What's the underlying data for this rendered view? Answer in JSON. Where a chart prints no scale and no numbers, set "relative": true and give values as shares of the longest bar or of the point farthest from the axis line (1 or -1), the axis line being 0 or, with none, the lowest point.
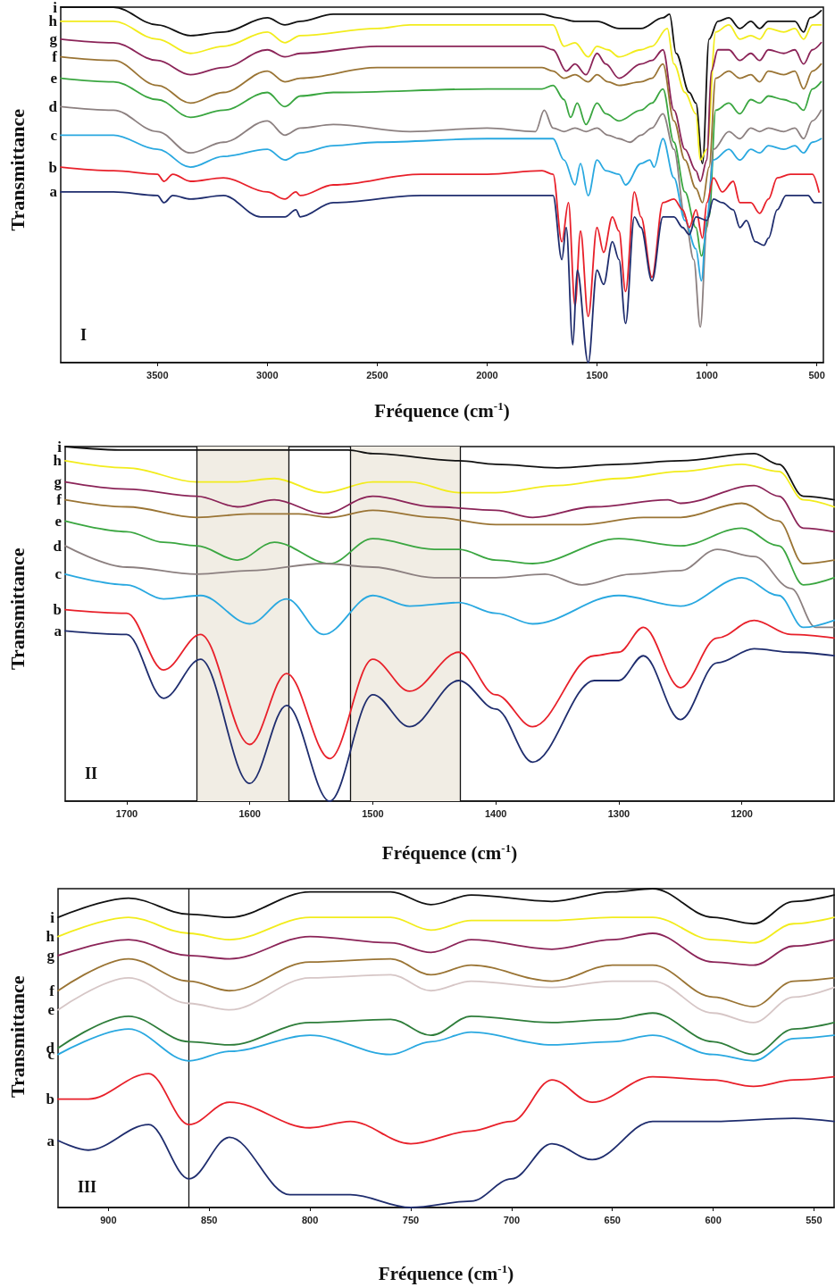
{
  "chart_data": [
    {
      "type": "line",
      "relative": true,
      "xlabel": "Fréquence (cm$^{-1}$)",
      "ylabel": "Transmittance",
      "annotations": [
        "I"
      ],
      "xlim": [
        3940,
        470
      ],
      "xticks": [
        3500,
        3000,
        2500,
        2000,
        1500,
        1000,
        500
      ],
      "grid": false,
      "legend": false,
      "marker": "none",
      "series": [
        {
          "name": "i",
          "color": "#111111",
          "x": [
            3940,
            3700,
            3500,
            3350,
            3200,
            3000,
            2920,
            2850,
            2700,
            2000,
            1750,
            1680,
            1600,
            1500,
            1400,
            1300,
            1200,
            1170,
            1140,
            1080,
            1050,
            1020,
            990,
            950,
            900,
            850,
            800,
            760,
            720,
            650,
            600,
            560,
            530,
            480
          ],
          "values": [
            1.0,
            1.0,
            0.95,
            0.92,
            0.93,
            0.97,
            0.95,
            0.96,
            0.98,
            0.98,
            0.98,
            0.97,
            0.96,
            0.96,
            0.94,
            0.94,
            0.97,
            0.98,
            0.87,
            0.76,
            0.73,
            0.56,
            0.91,
            0.96,
            0.97,
            0.94,
            0.96,
            0.94,
            0.96,
            0.96,
            0.96,
            0.93,
            0.97,
            0.99
          ]
        },
        {
          "name": "h",
          "color": "#f2ec1c",
          "x": [
            3940,
            3700,
            3500,
            3350,
            3200,
            3000,
            2920,
            2850,
            2500,
            2350,
            2000,
            1750,
            1700,
            1650,
            1600,
            1540,
            1500,
            1450,
            1400,
            1300,
            1250,
            1180,
            1150,
            1100,
            1050,
            1030,
            1000,
            960,
            900,
            850,
            800,
            760,
            720,
            650,
            600,
            560,
            520,
            480
          ],
          "values": [
            0.96,
            0.96,
            0.91,
            0.87,
            0.89,
            0.93,
            0.9,
            0.92,
            0.94,
            0.95,
            0.95,
            0.95,
            0.95,
            0.89,
            0.9,
            0.86,
            0.89,
            0.88,
            0.86,
            0.88,
            0.89,
            0.94,
            0.84,
            0.76,
            0.7,
            0.57,
            0.6,
            0.93,
            0.95,
            0.91,
            0.92,
            0.91,
            0.94,
            0.93,
            0.94,
            0.91,
            0.95,
            0.95
          ]
        },
        {
          "name": "g",
          "color": "#8b2458",
          "x": [
            3940,
            3700,
            3500,
            3350,
            3200,
            3000,
            2920,
            2850,
            2500,
            2000,
            1750,
            1700,
            1640,
            1600,
            1550,
            1500,
            1460,
            1400,
            1300,
            1250,
            1200,
            1150,
            1100,
            1050,
            1030,
            1000,
            980,
            950,
            900,
            850,
            800,
            760,
            720,
            650,
            600,
            560,
            520,
            480
          ],
          "values": [
            0.91,
            0.9,
            0.85,
            0.81,
            0.83,
            0.88,
            0.86,
            0.87,
            0.89,
            0.89,
            0.89,
            0.88,
            0.82,
            0.84,
            0.81,
            0.87,
            0.84,
            0.8,
            0.84,
            0.85,
            0.88,
            0.71,
            0.6,
            0.54,
            0.51,
            0.57,
            0.82,
            0.88,
            0.88,
            0.85,
            0.87,
            0.85,
            0.88,
            0.87,
            0.88,
            0.84,
            0.88,
            0.9
          ]
        },
        {
          "name": "f",
          "color": "#9a7434",
          "x": [
            3940,
            3700,
            3500,
            3350,
            3200,
            3000,
            2920,
            2850,
            2500,
            2000,
            1750,
            1700,
            1650,
            1600,
            1540,
            1500,
            1450,
            1400,
            1300,
            1250,
            1200,
            1150,
            1100,
            1050,
            1020,
            990,
            960,
            900,
            850,
            800,
            760,
            720,
            650,
            600,
            560,
            520,
            480
          ],
          "values": [
            0.86,
            0.85,
            0.78,
            0.73,
            0.76,
            0.82,
            0.79,
            0.8,
            0.83,
            0.83,
            0.83,
            0.82,
            0.8,
            0.81,
            0.79,
            0.81,
            0.79,
            0.78,
            0.79,
            0.8,
            0.84,
            0.68,
            0.57,
            0.49,
            0.45,
            0.55,
            0.8,
            0.82,
            0.8,
            0.81,
            0.79,
            0.82,
            0.81,
            0.82,
            0.77,
            0.82,
            0.84
          ]
        },
        {
          "name": "e",
          "color": "#3aa640",
          "x": [
            3940,
            3700,
            3500,
            3350,
            3200,
            3000,
            2920,
            2850,
            2700,
            2000,
            1750,
            1700,
            1650,
            1620,
            1590,
            1550,
            1500,
            1460,
            1400,
            1300,
            1250,
            1200,
            1150,
            1100,
            1050,
            1025,
            990,
            960,
            900,
            850,
            800,
            760,
            720,
            650,
            600,
            560,
            520,
            480
          ],
          "values": [
            0.8,
            0.79,
            0.74,
            0.69,
            0.71,
            0.76,
            0.72,
            0.75,
            0.76,
            0.77,
            0.77,
            0.78,
            0.74,
            0.69,
            0.73,
            0.67,
            0.73,
            0.7,
            0.68,
            0.71,
            0.73,
            0.77,
            0.62,
            0.48,
            0.38,
            0.3,
            0.41,
            0.71,
            0.73,
            0.7,
            0.74,
            0.73,
            0.75,
            0.74,
            0.73,
            0.71,
            0.77,
            0.79
          ]
        },
        {
          "name": "d",
          "color": "#8c8080",
          "x": [
            3940,
            3700,
            3500,
            3350,
            3200,
            3000,
            2920,
            2850,
            2700,
            2350,
            2000,
            1780,
            1740,
            1700,
            1650,
            1600,
            1550,
            1500,
            1450,
            1400,
            1350,
            1300,
            1250,
            1200,
            1150,
            1100,
            1060,
            1030,
            1000,
            970,
            900,
            850,
            800,
            760,
            720,
            650,
            600,
            560,
            520,
            480
          ],
          "values": [
            0.72,
            0.71,
            0.65,
            0.59,
            0.62,
            0.68,
            0.64,
            0.66,
            0.67,
            0.65,
            0.66,
            0.65,
            0.71,
            0.66,
            0.65,
            0.66,
            0.65,
            0.66,
            0.64,
            0.63,
            0.62,
            0.64,
            0.66,
            0.7,
            0.6,
            0.41,
            0.29,
            0.1,
            0.38,
            0.6,
            0.65,
            0.63,
            0.66,
            0.65,
            0.66,
            0.65,
            0.66,
            0.63,
            0.68,
            0.71
          ]
        },
        {
          "name": "c",
          "color": "#29a8e0",
          "x": [
            3940,
            3700,
            3500,
            3350,
            3200,
            3000,
            2920,
            2850,
            2700,
            2500,
            2000,
            1750,
            1700,
            1650,
            1600,
            1575,
            1540,
            1500,
            1460,
            1400,
            1370,
            1300,
            1260,
            1240,
            1200,
            1150,
            1100,
            1050,
            1025,
            1000,
            970,
            900,
            850,
            800,
            760,
            720,
            650,
            600,
            560,
            520,
            480
          ],
          "values": [
            0.64,
            0.64,
            0.6,
            0.55,
            0.58,
            0.6,
            0.57,
            0.59,
            0.61,
            0.62,
            0.63,
            0.63,
            0.63,
            0.57,
            0.5,
            0.56,
            0.47,
            0.57,
            0.54,
            0.53,
            0.5,
            0.56,
            0.57,
            0.55,
            0.63,
            0.52,
            0.4,
            0.32,
            0.23,
            0.41,
            0.57,
            0.6,
            0.57,
            0.6,
            0.59,
            0.61,
            0.6,
            0.61,
            0.59,
            0.62,
            0.63
          ]
        },
        {
          "name": "b",
          "color": "#e8202a",
          "x": [
            3940,
            3700,
            3500,
            3470,
            3430,
            3350,
            3200,
            3000,
            2920,
            2870,
            2850,
            2700,
            2300,
            2000,
            1750,
            1700,
            1660,
            1630,
            1600,
            1575,
            1540,
            1500,
            1470,
            1430,
            1400,
            1370,
            1330,
            1300,
            1250,
            1200,
            1150,
            1110,
            1080,
            1050,
            1020,
            1000,
            970,
            930,
            880,
            850,
            800,
            760,
            720,
            680,
            620,
            560,
            520,
            490
          ],
          "values": [
            0.55,
            0.54,
            0.53,
            0.51,
            0.53,
            0.51,
            0.52,
            0.48,
            0.46,
            0.48,
            0.47,
            0.5,
            0.53,
            0.53,
            0.54,
            0.53,
            0.34,
            0.45,
            0.16,
            0.37,
            0.13,
            0.38,
            0.31,
            0.41,
            0.37,
            0.2,
            0.48,
            0.41,
            0.24,
            0.45,
            0.46,
            0.43,
            0.38,
            0.43,
            0.35,
            0.45,
            0.52,
            0.48,
            0.51,
            0.45,
            0.45,
            0.42,
            0.46,
            0.52,
            0.53,
            0.53,
            0.53,
            0.48
          ]
        },
        {
          "name": "a",
          "color": "#1f2d6e",
          "x": [
            3940,
            3700,
            3500,
            3470,
            3430,
            3350,
            3200,
            3030,
            2920,
            2870,
            2850,
            2700,
            2300,
            2000,
            1750,
            1700,
            1660,
            1640,
            1610,
            1590,
            1540,
            1500,
            1470,
            1430,
            1400,
            1370,
            1330,
            1300,
            1250,
            1200,
            1150,
            1110,
            1080,
            1050,
            1000,
            970,
            930,
            880,
            850,
            820,
            780,
            740,
            720,
            680,
            640,
            600,
            540,
            510,
            480
          ],
          "values": [
            0.48,
            0.48,
            0.47,
            0.45,
            0.47,
            0.46,
            0.47,
            0.41,
            0.41,
            0.43,
            0.41,
            0.45,
            0.47,
            0.47,
            0.47,
            0.47,
            0.29,
            0.38,
            0.05,
            0.26,
            0,
            0.26,
            0.22,
            0.34,
            0.29,
            0.11,
            0.41,
            0.38,
            0.23,
            0.41,
            0.41,
            0.38,
            0.36,
            0.41,
            0.4,
            0.46,
            0.45,
            0.43,
            0.38,
            0.4,
            0.34,
            0.33,
            0.35,
            0.43,
            0.47,
            0.47,
            0.47,
            0.45,
            0.45
          ]
        }
      ]
    },
    {
      "type": "line",
      "relative": true,
      "xlabel": "Fréquence (cm$^{-1}$)",
      "ylabel": "Transmittance",
      "annotations": [
        "II"
      ],
      "xlim": [
        1750,
        1125
      ],
      "xticks": [
        1700,
        1600,
        1500,
        1400,
        1300,
        1200
      ],
      "grid": false,
      "legend": false,
      "marker": "none",
      "ref_lines": [
        {
          "axis": "x",
          "value": 1643,
          "label": null
        },
        {
          "axis": "x",
          "value": 1568,
          "label": null
        },
        {
          "axis": "x",
          "value": 1518,
          "label": null
        },
        {
          "axis": "x",
          "value": 1429,
          "label": null
        }
      ],
      "bands": [
        {
          "axis": "x",
          "from": 1643,
          "to": 1568,
          "label": null,
          "color": "#f1ede4"
        },
        {
          "axis": "x",
          "from": 1518,
          "to": 1429,
          "label": null,
          "color": "#f1ede4"
        }
      ],
      "series": [
        {
          "name": "i",
          "color": "#111111",
          "x": [
            1750,
            1700,
            1643,
            1568,
            1520,
            1500,
            1430,
            1400,
            1350,
            1300,
            1250,
            1190,
            1170,
            1150,
            1125
          ],
          "values": [
            1.0,
            0.99,
            0.99,
            0.99,
            0.99,
            0.98,
            0.96,
            0.95,
            0.94,
            0.95,
            0.96,
            0.98,
            0.95,
            0.86,
            0.85
          ]
        },
        {
          "name": "h",
          "color": "#f2ec1c",
          "x": [
            1750,
            1700,
            1643,
            1610,
            1580,
            1540,
            1500,
            1470,
            1430,
            1400,
            1350,
            1300,
            1250,
            1200,
            1170,
            1150,
            1125
          ],
          "values": [
            0.96,
            0.94,
            0.9,
            0.9,
            0.91,
            0.87,
            0.9,
            0.9,
            0.87,
            0.87,
            0.89,
            0.91,
            0.93,
            0.95,
            0.93,
            0.85,
            0.83
          ]
        },
        {
          "name": "g",
          "color": "#8b2458",
          "x": [
            1750,
            1700,
            1643,
            1610,
            1580,
            1540,
            1500,
            1450,
            1400,
            1370,
            1320,
            1260,
            1250,
            1190,
            1170,
            1150,
            1125
          ],
          "values": [
            0.9,
            0.88,
            0.86,
            0.83,
            0.85,
            0.81,
            0.86,
            0.83,
            0.82,
            0.8,
            0.83,
            0.85,
            0.84,
            0.89,
            0.86,
            0.77,
            0.76
          ]
        },
        {
          "name": "f",
          "color": "#9a7434",
          "x": [
            1750,
            1700,
            1643,
            1600,
            1560,
            1535,
            1500,
            1450,
            1400,
            1330,
            1280,
            1250,
            1200,
            1170,
            1150,
            1125
          ],
          "values": [
            0.85,
            0.83,
            0.8,
            0.81,
            0.81,
            0.8,
            0.82,
            0.8,
            0.78,
            0.78,
            0.8,
            0.8,
            0.84,
            0.79,
            0.67,
            0.68
          ]
        },
        {
          "name": "e",
          "color": "#3aa640",
          "x": [
            1750,
            1700,
            1670,
            1643,
            1610,
            1580,
            1535,
            1500,
            1450,
            1430,
            1400,
            1370,
            1300,
            1250,
            1200,
            1170,
            1150,
            1125
          ],
          "values": [
            0.79,
            0.76,
            0.73,
            0.72,
            0.68,
            0.73,
            0.67,
            0.74,
            0.71,
            0.71,
            0.68,
            0.67,
            0.74,
            0.72,
            0.77,
            0.72,
            0.61,
            0.63
          ]
        },
        {
          "name": "d",
          "color": "#8c8080",
          "x": [
            1750,
            1700,
            1643,
            1600,
            1540,
            1500,
            1450,
            1400,
            1360,
            1330,
            1290,
            1250,
            1220,
            1190,
            1160,
            1140,
            1125
          ],
          "values": [
            0.72,
            0.66,
            0.64,
            0.65,
            0.67,
            0.66,
            0.63,
            0.63,
            0.64,
            0.61,
            0.64,
            0.65,
            0.71,
            0.69,
            0.6,
            0.49,
            0.49
          ]
        },
        {
          "name": "c",
          "color": "#29a8e0",
          "x": [
            1750,
            1700,
            1670,
            1640,
            1600,
            1570,
            1540,
            1500,
            1470,
            1430,
            1400,
            1370,
            1300,
            1250,
            1200,
            1170,
            1150,
            1125
          ],
          "values": [
            0.64,
            0.61,
            0.57,
            0.58,
            0.5,
            0.57,
            0.47,
            0.58,
            0.55,
            0.56,
            0.53,
            0.5,
            0.58,
            0.55,
            0.63,
            0.58,
            0.49,
            0.51
          ]
        },
        {
          "name": "b",
          "color": "#e8202a",
          "x": [
            1750,
            1700,
            1670,
            1640,
            1600,
            1570,
            1535,
            1500,
            1470,
            1430,
            1400,
            1370,
            1320,
            1300,
            1280,
            1250,
            1220,
            1190,
            1160,
            1125
          ],
          "values": [
            0.54,
            0.53,
            0.37,
            0.47,
            0.16,
            0.36,
            0.12,
            0.4,
            0.31,
            0.42,
            0.3,
            0.21,
            0.41,
            0.42,
            0.49,
            0.32,
            0.46,
            0.51,
            0.47,
            0.46
          ]
        },
        {
          "name": "a",
          "color": "#1f2d6e",
          "x": [
            1750,
            1700,
            1670,
            1640,
            1600,
            1570,
            1535,
            1500,
            1470,
            1430,
            1400,
            1370,
            1320,
            1300,
            1280,
            1250,
            1220,
            1190,
            1160,
            1125
          ],
          "values": [
            0.48,
            0.47,
            0.29,
            0.4,
            0.05,
            0.27,
            0,
            0.3,
            0.21,
            0.34,
            0.26,
            0.11,
            0.34,
            0.34,
            0.41,
            0.23,
            0.39,
            0.43,
            0.42,
            0.41
          ]
        }
      ]
    },
    {
      "type": "line",
      "relative": true,
      "xlabel": "Fréquence (cm$^{-1}$)",
      "ylabel": "Transmittance",
      "annotations": [
        "III"
      ],
      "xlim": [
        925,
        540
      ],
      "xticks": [
        900,
        850,
        800,
        750,
        700,
        650,
        600,
        550
      ],
      "grid": false,
      "legend": false,
      "marker": "none",
      "ref_lines": [
        {
          "axis": "x",
          "value": 860,
          "label": null
        }
      ],
      "series": [
        {
          "name": "i",
          "color": "#111111",
          "x": [
            925,
            890,
            860,
            840,
            800,
            760,
            740,
            720,
            680,
            650,
            630,
            600,
            580,
            560,
            540
          ],
          "values": [
            0.91,
            0.97,
            0.92,
            0.91,
            0.99,
            0.99,
            0.95,
            0.98,
            0.96,
            0.99,
            1.0,
            0.91,
            0.89,
            0.96,
            0.98
          ]
        },
        {
          "name": "h",
          "color": "#f2ec1c",
          "x": [
            925,
            890,
            860,
            840,
            800,
            760,
            740,
            720,
            680,
            650,
            630,
            600,
            580,
            560,
            540
          ],
          "values": [
            0.85,
            0.91,
            0.86,
            0.84,
            0.91,
            0.91,
            0.87,
            0.9,
            0.9,
            0.91,
            0.91,
            0.84,
            0.83,
            0.89,
            0.91
          ]
        },
        {
          "name": "g",
          "color": "#8b2458",
          "x": [
            925,
            890,
            860,
            840,
            800,
            760,
            740,
            720,
            680,
            650,
            630,
            600,
            580,
            560,
            540
          ],
          "values": [
            0.79,
            0.84,
            0.79,
            0.78,
            0.85,
            0.83,
            0.8,
            0.84,
            0.81,
            0.84,
            0.86,
            0.77,
            0.76,
            0.82,
            0.84
          ]
        },
        {
          "name": "f",
          "color": "#9a7434",
          "x": [
            925,
            890,
            860,
            840,
            800,
            760,
            740,
            720,
            680,
            650,
            630,
            600,
            580,
            560,
            540
          ],
          "values": [
            0.68,
            0.78,
            0.71,
            0.68,
            0.77,
            0.78,
            0.73,
            0.76,
            0.71,
            0.76,
            0.76,
            0.66,
            0.63,
            0.71,
            0.72
          ]
        },
        {
          "name": "e",
          "color": "#d6c6c6",
          "x": [
            925,
            890,
            860,
            840,
            800,
            760,
            740,
            720,
            680,
            650,
            630,
            600,
            580,
            560,
            540
          ],
          "values": [
            0.62,
            0.72,
            0.64,
            0.62,
            0.72,
            0.73,
            0.68,
            0.71,
            0.69,
            0.71,
            0.71,
            0.61,
            0.58,
            0.66,
            0.69
          ]
        },
        {
          "name": "d",
          "color": "#2e7d3a",
          "x": [
            925,
            890,
            860,
            840,
            800,
            760,
            740,
            720,
            680,
            650,
            630,
            600,
            580,
            560,
            540
          ],
          "values": [
            0.5,
            0.6,
            0.52,
            0.51,
            0.58,
            0.59,
            0.54,
            0.6,
            0.58,
            0.59,
            0.61,
            0.52,
            0.48,
            0.56,
            0.58
          ]
        },
        {
          "name": "c",
          "color": "#29a8e0",
          "x": [
            925,
            890,
            860,
            840,
            800,
            760,
            740,
            720,
            680,
            650,
            630,
            600,
            580,
            560,
            540
          ],
          "values": [
            0.48,
            0.56,
            0.46,
            0.49,
            0.54,
            0.48,
            0.52,
            0.55,
            0.51,
            0.52,
            0.54,
            0.48,
            0.46,
            0.53,
            0.54
          ]
        },
        {
          "name": "b",
          "color": "#e8202a",
          "x": [
            925,
            910,
            880,
            860,
            840,
            800,
            780,
            750,
            720,
            700,
            680,
            660,
            630,
            600,
            580,
            560,
            540
          ],
          "values": [
            0.34,
            0.34,
            0.42,
            0.26,
            0.33,
            0.25,
            0.27,
            0.2,
            0.24,
            0.27,
            0.4,
            0.33,
            0.41,
            0.4,
            0.38,
            0.4,
            0.41
          ]
        },
        {
          "name": "a",
          "color": "#1f2d6e",
          "x": [
            925,
            910,
            880,
            860,
            840,
            810,
            780,
            750,
            720,
            700,
            680,
            660,
            630,
            600,
            560,
            540
          ],
          "values": [
            0.21,
            0.18,
            0.26,
            0.09,
            0.22,
            0.04,
            0.04,
            0,
            0.02,
            0.09,
            0.2,
            0.15,
            0.27,
            0.27,
            0.28,
            0.27
          ]
        }
      ]
    }
  ]
}
